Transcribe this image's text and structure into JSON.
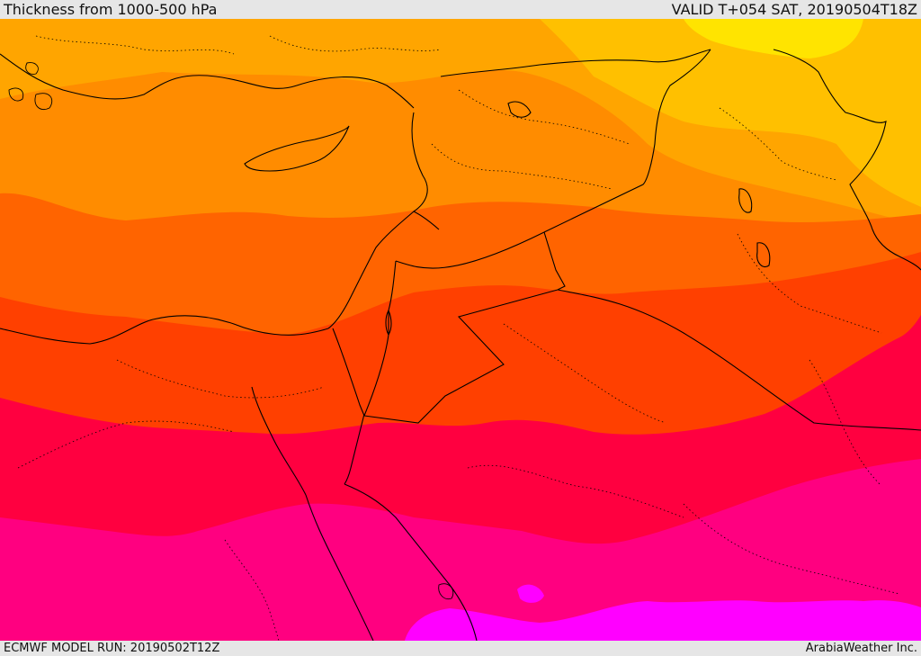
{
  "header": {
    "title": "Thickness from 1000-500 hPa",
    "valid": "VALID T+054 SAT, 20190504T18Z"
  },
  "footer": {
    "model_run": "ECMWF MODEL RUN: 20190502T12Z",
    "credit": "ArabiaWeather Inc."
  },
  "map": {
    "colors": {
      "yellow": "#ffe400",
      "light_orange": "#ffc000",
      "orange_amber": "#ffa500",
      "orange": "#ff8c00",
      "dark_orange": "#ff6400",
      "red_orange": "#ff4000",
      "red": "#ff0040",
      "deep_pink": "#ff0080",
      "magenta": "#ff00ff",
      "border_line": "#000000"
    }
  }
}
